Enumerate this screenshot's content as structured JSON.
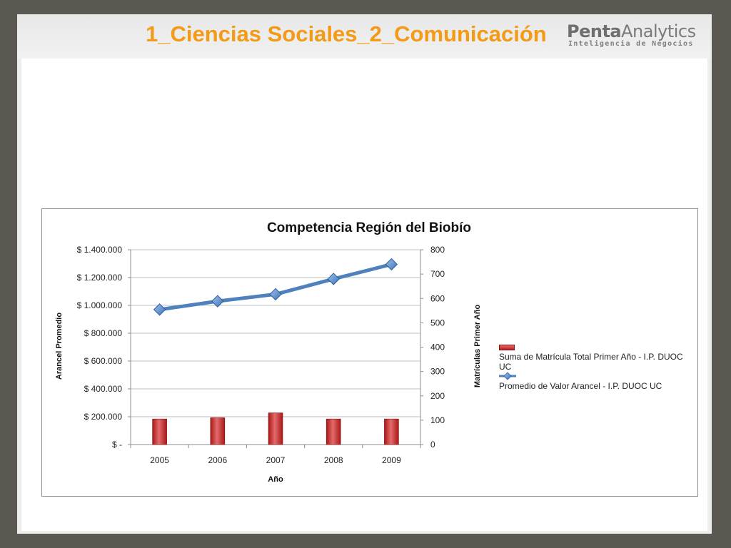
{
  "slide": {
    "title": "1_Ciencias Sociales_2_Comunicación",
    "logo_main_bold": "Penta",
    "logo_main_rest": "Analytics",
    "logo_sub": "Inteligencia de Negocios"
  },
  "colors": {
    "title": "#f39a16",
    "line": "#4f81bd",
    "bar": "#c0504d",
    "grid": "#bfbfbf"
  },
  "chart_data": {
    "type": "bar",
    "title": "Competencia Región del Biobío",
    "xlabel": "Año",
    "ylabel_left": "Arancel Promedio",
    "ylabel_right": "Matrículas Primer Año",
    "categories": [
      "2005",
      "2006",
      "2007",
      "2008",
      "2009"
    ],
    "y_left": {
      "min": 0,
      "max": 1400000,
      "ticks": [
        0,
        200000,
        400000,
        600000,
        800000,
        1000000,
        1200000,
        1400000
      ],
      "tick_labels": [
        "$ -",
        "$ 200.000",
        "$ 400.000",
        "$ 600.000",
        "$ 800.000",
        "$ 1.000.000",
        "$ 1.200.000",
        "$ 1.400.000"
      ]
    },
    "y_right": {
      "min": 0,
      "max": 800,
      "ticks": [
        0,
        100,
        200,
        300,
        400,
        500,
        600,
        700,
        800
      ],
      "tick_labels": [
        "0",
        "100",
        "200",
        "300",
        "400",
        "500",
        "600",
        "700",
        "800"
      ]
    },
    "series": [
      {
        "name": "Suma de Matrícula Total Primer Año - I.P. DUOC UC",
        "kind": "bar",
        "axis": "right",
        "values": [
          105,
          110,
          130,
          105,
          105
        ]
      },
      {
        "name": "Promedio de Valor Arancel  - I.P. DUOC UC",
        "kind": "line",
        "axis": "left",
        "values": [
          970000,
          1030000,
          1080000,
          1190000,
          1295000
        ]
      }
    ],
    "grid": true,
    "legend_position": "right"
  }
}
